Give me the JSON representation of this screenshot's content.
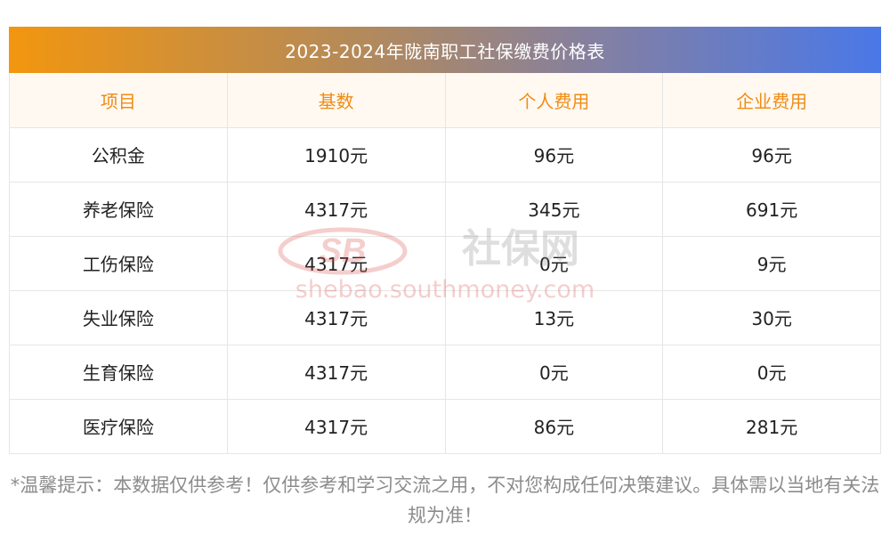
{
  "title": "2023-2024年陇南职工社保缴费价格表",
  "columns": [
    "项目",
    "基数",
    "个人费用",
    "企业费用"
  ],
  "rows": [
    [
      "公积金",
      "1910元",
      "96元",
      "96元"
    ],
    [
      "养老保险",
      "4317元",
      "345元",
      "691元"
    ],
    [
      "工伤保险",
      "4317元",
      "0元",
      "9元"
    ],
    [
      "失业保险",
      "4317元",
      "13元",
      "30元"
    ],
    [
      "生育保险",
      "4317元",
      "0元",
      "0元"
    ],
    [
      "医疗保险",
      "4317元",
      "86元",
      "281元"
    ]
  ],
  "watermark": {
    "logo_text": "SB",
    "cn_text": "社保网",
    "url_text": "shebao.southmoney.com",
    "color": "#d9534f"
  },
  "note": "*温馨提示：本数据仅供参考！仅供参考和学习交流之用，不对您构成任何决策建议。具体需以当地有关法规为准！",
  "colors": {
    "header_text": "#f08c14",
    "header_bg": "#fff9f1",
    "title_gradient_start": "#f2960f",
    "title_gradient_end": "#4a78e8"
  }
}
